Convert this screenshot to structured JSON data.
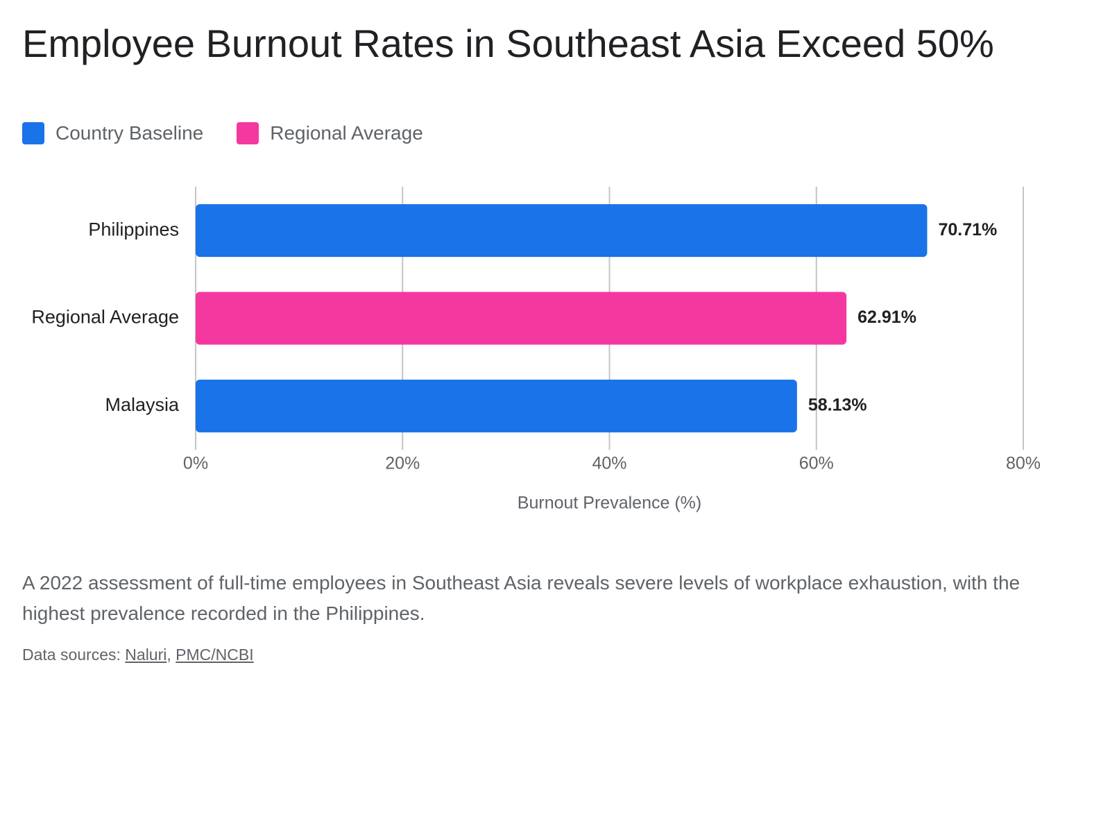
{
  "chart_data": {
    "type": "hbar",
    "title": "Employee Burnout Rates in Southeast Asia Exceed 50%",
    "legend": [
      {
        "name": "Country Baseline",
        "color": "#1a73e8"
      },
      {
        "name": "Regional Average",
        "color": "#f538a0"
      }
    ],
    "categories": [
      "Philippines",
      "Regional Average",
      "Malaysia"
    ],
    "values": [
      70.71,
      62.91,
      58.13
    ],
    "value_labels": [
      "70.71%",
      "62.91%",
      "58.13%"
    ],
    "colors": [
      "#1a73e8",
      "#f538a0",
      "#1a73e8"
    ],
    "xlim": [
      0,
      80
    ],
    "xticks": [
      {
        "value": 0,
        "label": "0%"
      },
      {
        "value": 20,
        "label": "20%"
      },
      {
        "value": 40,
        "label": "40%"
      },
      {
        "value": 60,
        "label": "60%"
      },
      {
        "value": 80,
        "label": "80%"
      }
    ],
    "xlabel": "Burnout Prevalence (%)",
    "grid": true,
    "description": "A 2022 assessment of full-time employees in Southeast Asia reveals severe levels of workplace exhaustion, with the highest prevalence recorded in the Philippines.",
    "sources": {
      "label": "Data sources:",
      "links": [
        "Naluri",
        "PMC/NCBI"
      ],
      "separator": ","
    }
  }
}
